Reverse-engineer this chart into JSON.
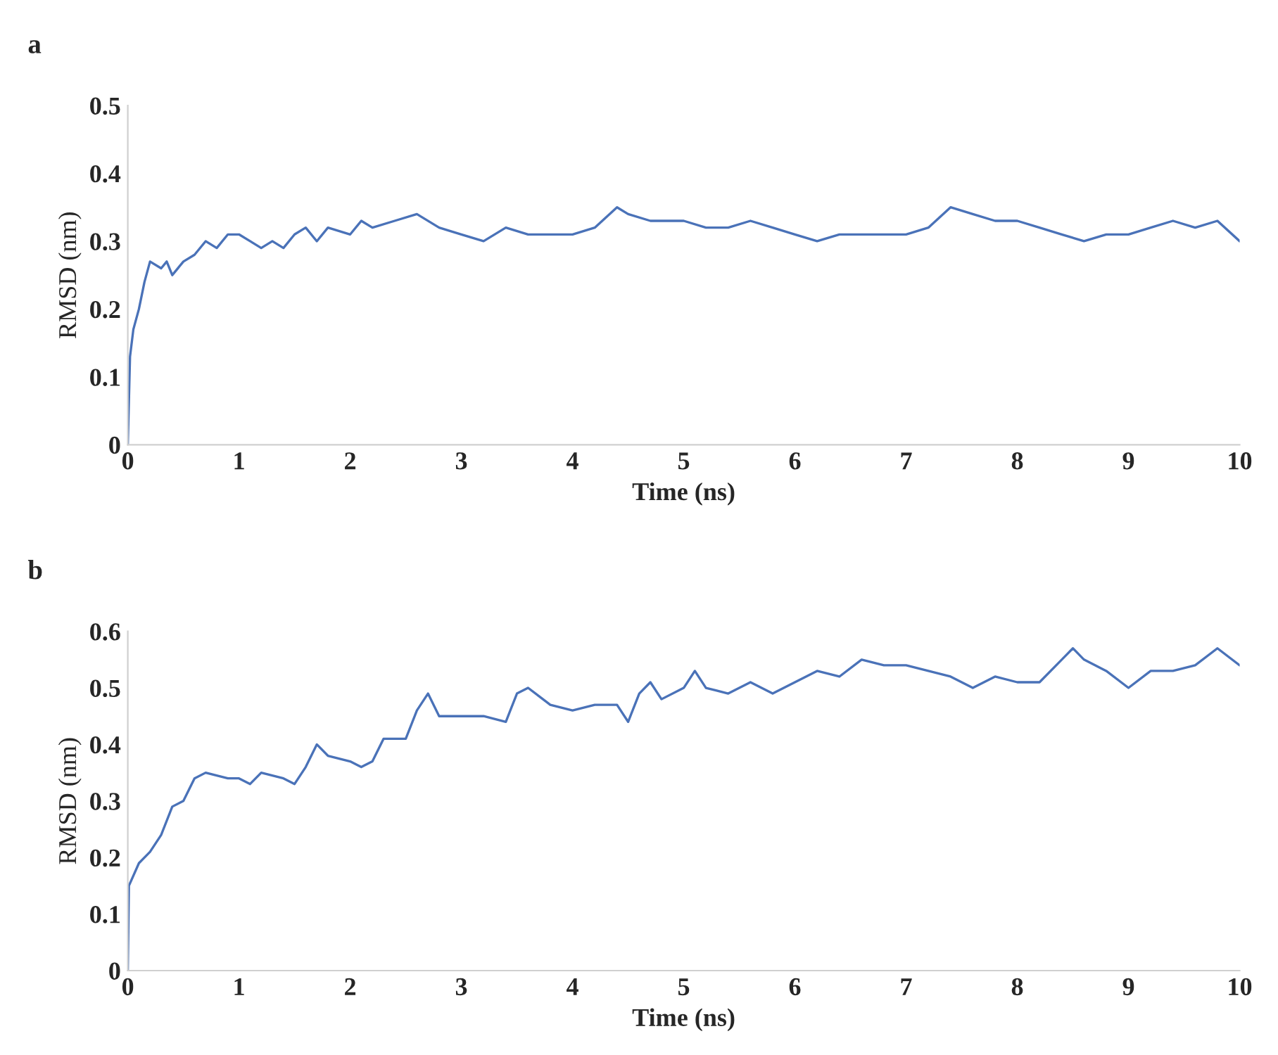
{
  "chart_data": [
    {
      "type": "line",
      "title": "a",
      "xlabel": "Time (ns)",
      "ylabel": "RMSD (nm)",
      "xlim": [
        0,
        10
      ],
      "ylim": [
        0,
        0.5
      ],
      "xticks": [
        0,
        1,
        2,
        3,
        4,
        5,
        6,
        7,
        8,
        9,
        10
      ],
      "yticks": [
        0,
        0.1,
        0.2,
        0.3,
        0.4,
        0.5
      ],
      "grid": false,
      "legend": false,
      "series": [
        {
          "color": "#4a72b8",
          "x": [
            0,
            0.02,
            0.05,
            0.1,
            0.15,
            0.2,
            0.3,
            0.35,
            0.4,
            0.5,
            0.6,
            0.7,
            0.8,
            0.9,
            1.0,
            1.1,
            1.2,
            1.3,
            1.4,
            1.5,
            1.6,
            1.7,
            1.8,
            2.0,
            2.1,
            2.2,
            2.4,
            2.6,
            2.8,
            3.0,
            3.2,
            3.4,
            3.6,
            3.8,
            4.0,
            4.2,
            4.4,
            4.5,
            4.7,
            5.0,
            5.2,
            5.4,
            5.6,
            5.8,
            6.0,
            6.2,
            6.4,
            6.6,
            6.8,
            7.0,
            7.2,
            7.4,
            7.6,
            7.8,
            8.0,
            8.2,
            8.4,
            8.6,
            8.8,
            9.0,
            9.2,
            9.4,
            9.6,
            9.8,
            10.0
          ],
          "values": [
            0,
            0.13,
            0.17,
            0.2,
            0.24,
            0.27,
            0.26,
            0.27,
            0.25,
            0.27,
            0.28,
            0.3,
            0.29,
            0.31,
            0.31,
            0.3,
            0.29,
            0.3,
            0.29,
            0.31,
            0.32,
            0.3,
            0.32,
            0.31,
            0.33,
            0.32,
            0.33,
            0.34,
            0.32,
            0.31,
            0.3,
            0.32,
            0.31,
            0.31,
            0.31,
            0.32,
            0.35,
            0.34,
            0.33,
            0.33,
            0.32,
            0.32,
            0.33,
            0.32,
            0.31,
            0.3,
            0.31,
            0.31,
            0.31,
            0.31,
            0.32,
            0.35,
            0.34,
            0.33,
            0.33,
            0.32,
            0.31,
            0.3,
            0.31,
            0.31,
            0.32,
            0.33,
            0.32,
            0.33,
            0.3
          ]
        }
      ]
    },
    {
      "type": "line",
      "title": "b",
      "xlabel": "Time (ns)",
      "ylabel": "RMSD (nm)",
      "xlim": [
        0,
        10
      ],
      "ylim": [
        0,
        0.6
      ],
      "xticks": [
        0,
        1,
        2,
        3,
        4,
        5,
        6,
        7,
        8,
        9,
        10
      ],
      "yticks": [
        0,
        0.1,
        0.2,
        0.3,
        0.4,
        0.5,
        0.6
      ],
      "grid": false,
      "legend": false,
      "series": [
        {
          "color": "#4a72b8",
          "x": [
            0,
            0.01,
            0.1,
            0.2,
            0.3,
            0.4,
            0.5,
            0.6,
            0.7,
            0.9,
            1.0,
            1.1,
            1.2,
            1.4,
            1.5,
            1.6,
            1.7,
            1.8,
            2.0,
            2.1,
            2.2,
            2.3,
            2.5,
            2.6,
            2.7,
            2.8,
            3.0,
            3.2,
            3.4,
            3.5,
            3.6,
            3.8,
            4.0,
            4.2,
            4.4,
            4.5,
            4.6,
            4.7,
            4.8,
            5.0,
            5.1,
            5.2,
            5.4,
            5.6,
            5.8,
            6.0,
            6.2,
            6.4,
            6.6,
            6.8,
            7.0,
            7.2,
            7.4,
            7.6,
            7.8,
            8.0,
            8.2,
            8.4,
            8.5,
            8.6,
            8.8,
            9.0,
            9.2,
            9.4,
            9.6,
            9.8,
            10.0
          ],
          "values": [
            0,
            0.15,
            0.19,
            0.21,
            0.24,
            0.29,
            0.3,
            0.34,
            0.35,
            0.34,
            0.34,
            0.33,
            0.35,
            0.34,
            0.33,
            0.36,
            0.4,
            0.38,
            0.37,
            0.36,
            0.37,
            0.41,
            0.41,
            0.46,
            0.49,
            0.45,
            0.45,
            0.45,
            0.44,
            0.49,
            0.5,
            0.47,
            0.46,
            0.47,
            0.47,
            0.44,
            0.49,
            0.51,
            0.48,
            0.5,
            0.53,
            0.5,
            0.49,
            0.51,
            0.49,
            0.51,
            0.53,
            0.52,
            0.55,
            0.54,
            0.54,
            0.53,
            0.52,
            0.5,
            0.52,
            0.51,
            0.51,
            0.55,
            0.57,
            0.55,
            0.53,
            0.5,
            0.53,
            0.53,
            0.54,
            0.57,
            0.54
          ]
        }
      ]
    }
  ]
}
